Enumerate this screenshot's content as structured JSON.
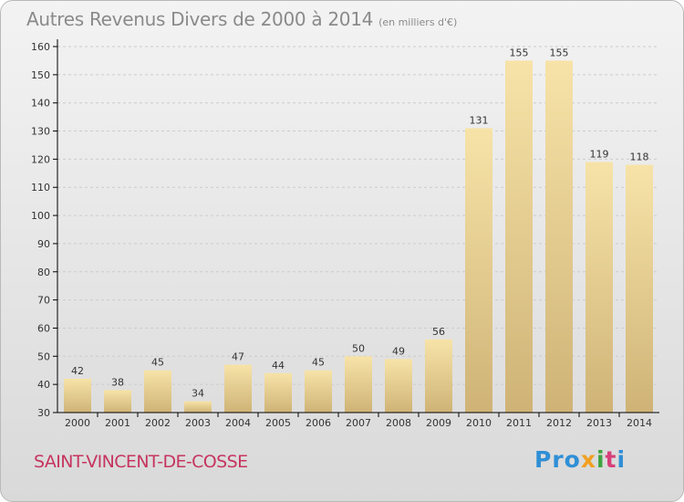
{
  "title": "Autres Revenus Divers de 2000 à 2014",
  "unit": "(en milliers d'€)",
  "town": "SAINT-VINCENT-DE-COSSE",
  "logo": {
    "p1": "Pro",
    "p2": "x",
    "p3": "i",
    "p4": "t",
    "p5": "i"
  },
  "colors": {
    "bar_light": "#f7e3a8",
    "bar_dark": "#cfb376",
    "grid": "#cccccc",
    "axis": "#000000",
    "tick_text": "#333333",
    "town": "#c6355f"
  },
  "chart_data": {
    "type": "bar",
    "categories": [
      "2000",
      "2001",
      "2002",
      "2003",
      "2004",
      "2005",
      "2006",
      "2007",
      "2008",
      "2009",
      "2010",
      "2011",
      "2012",
      "2013",
      "2014"
    ],
    "values": [
      42,
      38,
      45,
      34,
      47,
      44,
      45,
      50,
      49,
      56,
      131,
      155,
      155,
      119,
      118
    ],
    "ylim": [
      30,
      160
    ],
    "yticks": [
      30,
      40,
      50,
      60,
      70,
      80,
      90,
      100,
      110,
      120,
      130,
      140,
      150,
      160
    ],
    "grid": true
  }
}
